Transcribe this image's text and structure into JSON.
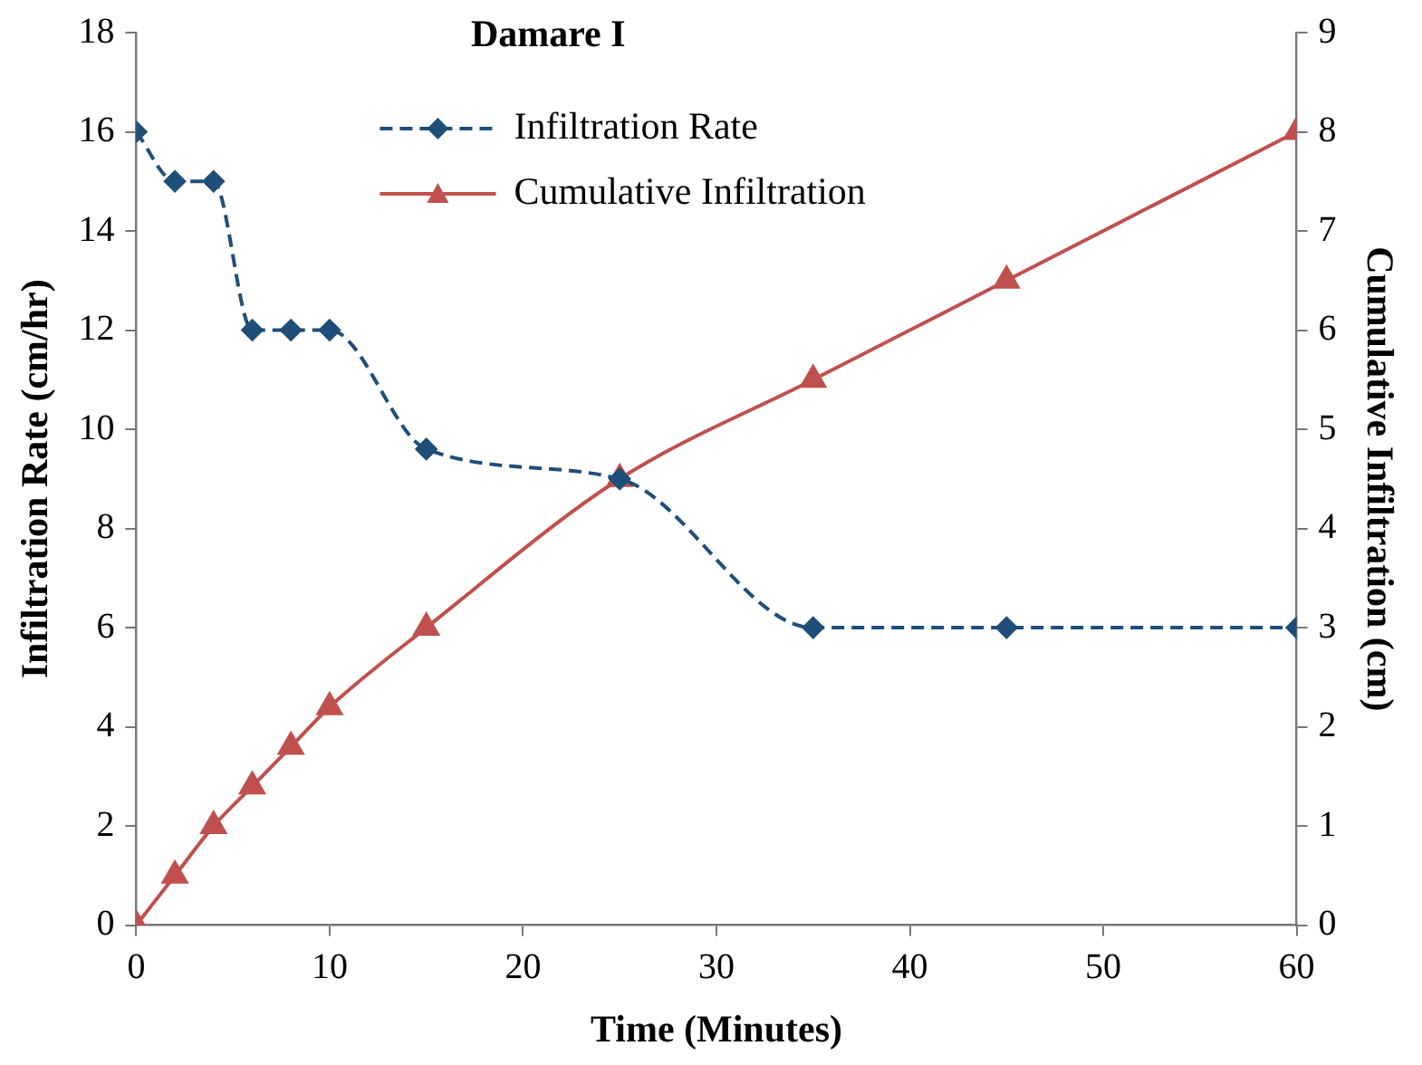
{
  "chart_data": {
    "type": "line",
    "title": "Damare I",
    "xlabel": "Time (Minutes)",
    "ylabel": "Infiltration Rate (cm/hr)",
    "y2label": "Cumulative Infiltration (cm)",
    "x": [
      0,
      2,
      4,
      6,
      8,
      10,
      15,
      25,
      35,
      45,
      60
    ],
    "series": [
      {
        "name": "Infiltration Rate",
        "color": "#1f4e79",
        "marker": "diamond",
        "line_style": "dashed",
        "values": [
          16,
          15,
          15,
          12,
          12,
          12,
          9.6,
          9,
          6,
          6,
          6
        ]
      },
      {
        "name": "Cumulative Infiltration",
        "color": "#c0504d",
        "marker": "triangle",
        "line_style": "solid",
        "axis": "y2",
        "values": [
          0,
          0.5,
          1,
          1.4,
          1.8,
          2.2,
          3,
          4.5,
          5.5,
          6.5,
          8
        ]
      }
    ],
    "xlim": [
      0,
      60
    ],
    "xticks": [
      0,
      10,
      20,
      30,
      40,
      50,
      60
    ],
    "ylim": [
      0,
      18
    ],
    "yticks": [
      0,
      2,
      4,
      6,
      8,
      10,
      12,
      14,
      16,
      18
    ],
    "y2lim": [
      0,
      9
    ],
    "y2ticks": [
      0,
      1,
      2,
      3,
      4,
      5,
      6,
      7,
      8,
      9
    ],
    "grid": false,
    "legend": "top"
  }
}
